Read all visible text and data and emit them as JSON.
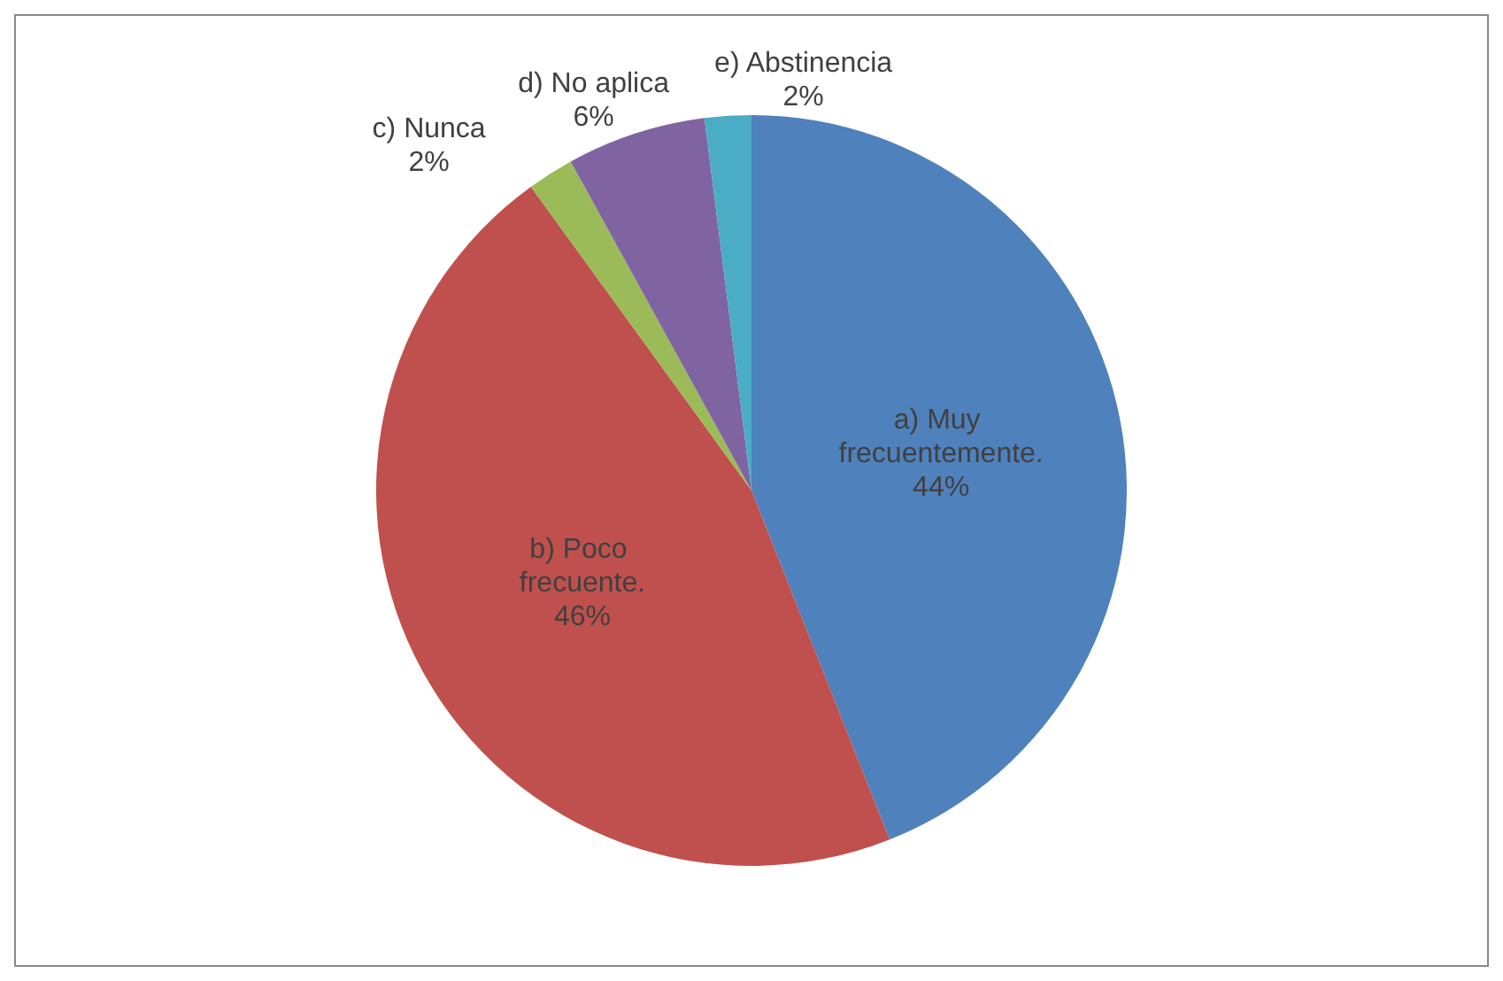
{
  "chart_data": {
    "type": "pie",
    "categories": [
      "a) Muy frecuentemente.",
      "b) Poco frecuente.",
      "c) Nunca",
      "d) No aplica",
      "e) Abstinencia"
    ],
    "values": [
      44,
      46,
      2,
      6,
      2
    ],
    "colors": [
      "#4f81bd",
      "#c0504d",
      "#9bbb59",
      "#8064a2",
      "#4bacc6"
    ],
    "value_labels": [
      "44%",
      "46%",
      "2%",
      "6%",
      "2%"
    ],
    "legend": false
  }
}
